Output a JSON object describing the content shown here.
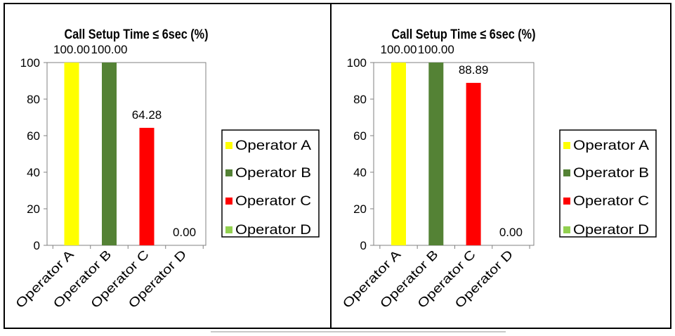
{
  "chart_data": [
    {
      "type": "bar",
      "title": "Call Setup Time ≤ 6sec (%)",
      "categories": [
        "Operator A",
        "Operator B",
        "Operator C",
        "Operator D"
      ],
      "values": [
        100,
        100,
        64.28,
        0
      ],
      "value_labels": [
        "100.00",
        "100.00",
        "64.28",
        "0.00"
      ],
      "colors": [
        "#ffff00",
        "#548235",
        "#ff0000",
        "#92d050"
      ],
      "ylim": [
        0,
        100
      ],
      "yticks": [
        0,
        20,
        40,
        60,
        80,
        100
      ],
      "ytick_labels": [
        "0",
        "20",
        "40",
        "60",
        "80",
        "100"
      ],
      "xlabel": "",
      "ylabel": "",
      "grid": false,
      "legend": {
        "position": "right",
        "entries": [
          "Operator A",
          "Operator B",
          "Operator C",
          "Operator D"
        ]
      }
    },
    {
      "type": "bar",
      "title": "Call Setup Time ≤ 6sec (%)",
      "categories": [
        "Operator A",
        "Operator B",
        "Operator C",
        "Operator D"
      ],
      "values": [
        100,
        100,
        88.89,
        0
      ],
      "value_labels": [
        "100.00",
        "100.00",
        "88.89",
        "0.00"
      ],
      "colors": [
        "#ffff00",
        "#548235",
        "#ff0000",
        "#92d050"
      ],
      "ylim": [
        0,
        100
      ],
      "yticks": [
        0,
        20,
        40,
        60,
        80,
        100
      ],
      "ytick_labels": [
        "0",
        "20",
        "40",
        "60",
        "80",
        "100"
      ],
      "xlabel": "",
      "ylabel": "",
      "grid": false,
      "legend": {
        "position": "right",
        "entries": [
          "Operator A",
          "Operator B",
          "Operator C",
          "Operator D"
        ]
      }
    }
  ]
}
